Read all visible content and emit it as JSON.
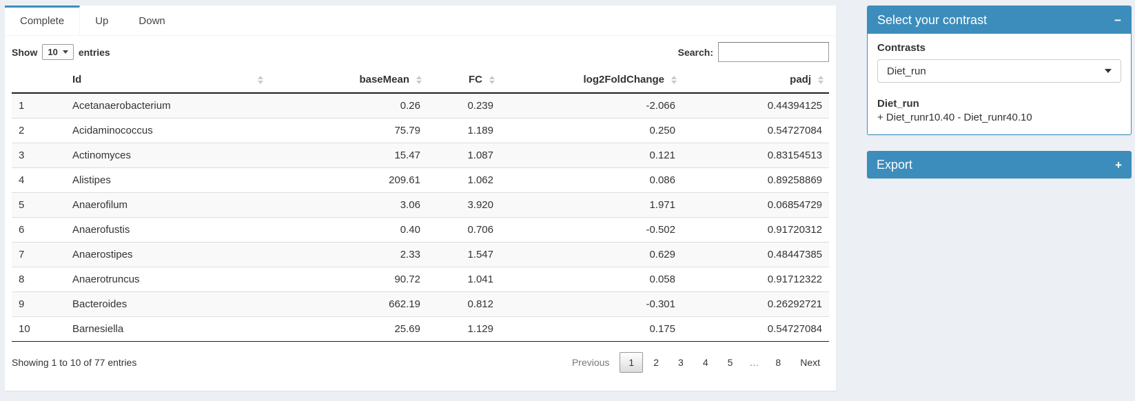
{
  "colors": {
    "accent": "#3c8dbc",
    "page_bg": "#ecf0f5",
    "stripe": "#f9f9f9"
  },
  "tabs": [
    {
      "label": "Complete",
      "active": true
    },
    {
      "label": "Up",
      "active": false
    },
    {
      "label": "Down",
      "active": false
    }
  ],
  "table_controls": {
    "show_label": "Show",
    "page_length": "10",
    "entries_label": "entries",
    "search_label": "Search:",
    "search_value": ""
  },
  "table": {
    "columns": [
      "",
      "Id",
      "baseMean",
      "FC",
      "log2FoldChange",
      "padj"
    ],
    "rows": [
      {
        "num": "1",
        "id": "Acetanaerobacterium",
        "baseMean": "0.26",
        "fc": "0.239",
        "log2fc": "-2.066",
        "padj": "0.44394125"
      },
      {
        "num": "2",
        "id": "Acidaminococcus",
        "baseMean": "75.79",
        "fc": "1.189",
        "log2fc": "0.250",
        "padj": "0.54727084"
      },
      {
        "num": "3",
        "id": "Actinomyces",
        "baseMean": "15.47",
        "fc": "1.087",
        "log2fc": "0.121",
        "padj": "0.83154513"
      },
      {
        "num": "4",
        "id": "Alistipes",
        "baseMean": "209.61",
        "fc": "1.062",
        "log2fc": "0.086",
        "padj": "0.89258869"
      },
      {
        "num": "5",
        "id": "Anaerofilum",
        "baseMean": "3.06",
        "fc": "3.920",
        "log2fc": "1.971",
        "padj": "0.06854729"
      },
      {
        "num": "6",
        "id": "Anaerofustis",
        "baseMean": "0.40",
        "fc": "0.706",
        "log2fc": "-0.502",
        "padj": "0.91720312"
      },
      {
        "num": "7",
        "id": "Anaerostipes",
        "baseMean": "2.33",
        "fc": "1.547",
        "log2fc": "0.629",
        "padj": "0.48447385"
      },
      {
        "num": "8",
        "id": "Anaerotruncus",
        "baseMean": "90.72",
        "fc": "1.041",
        "log2fc": "0.058",
        "padj": "0.91712322"
      },
      {
        "num": "9",
        "id": "Bacteroides",
        "baseMean": "662.19",
        "fc": "0.812",
        "log2fc": "-0.301",
        "padj": "0.26292721"
      },
      {
        "num": "10",
        "id": "Barnesiella",
        "baseMean": "25.69",
        "fc": "1.129",
        "log2fc": "0.175",
        "padj": "0.54727084"
      }
    ]
  },
  "footer": {
    "info": "Showing 1 to 10 of 77 entries",
    "pagination": [
      {
        "label": "Previous",
        "state": "disabled"
      },
      {
        "label": "1",
        "state": "current"
      },
      {
        "label": "2"
      },
      {
        "label": "3"
      },
      {
        "label": "4"
      },
      {
        "label": "5"
      },
      {
        "label": "…",
        "state": "ellipsis"
      },
      {
        "label": "8"
      },
      {
        "label": "Next"
      }
    ]
  },
  "contrast_panel": {
    "title": "Select your contrast",
    "collapse_icon": "−",
    "contrasts_label": "Contrasts",
    "selected_contrast": "Diet_run",
    "contrast_name": "Diet_run",
    "contrast_formula": "+ Diet_runr10.40 - Diet_runr40.10"
  },
  "export_panel": {
    "title": "Export",
    "expand_icon": "+"
  }
}
